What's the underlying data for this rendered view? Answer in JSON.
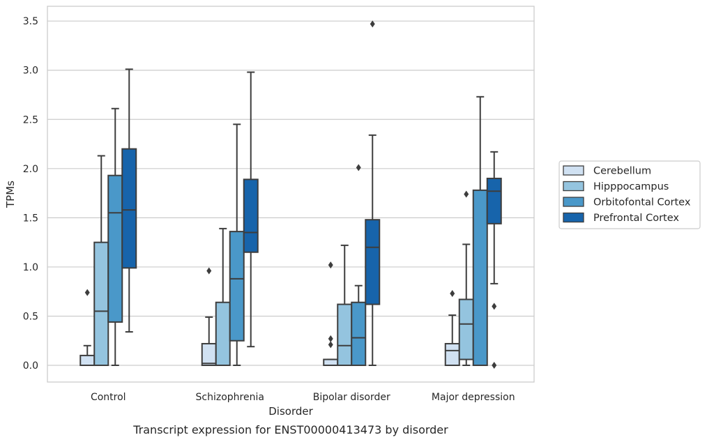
{
  "chart_data": {
    "type": "box",
    "caption": "Transcript expression for ENST00000413473 by disorder",
    "xlabel": "Disorder",
    "ylabel": "TPMs",
    "ylim": [
      -0.17,
      3.65
    ],
    "yticks": [
      0.0,
      0.5,
      1.0,
      1.5,
      2.0,
      2.5,
      3.0,
      3.5
    ],
    "ytick_labels": [
      "0.0",
      "0.5",
      "1.0",
      "1.5",
      "2.0",
      "2.5",
      "3.0",
      "3.5"
    ],
    "categories": [
      "Control",
      "Schizophrenia",
      "Bipolar disorder",
      "Major depression"
    ],
    "grid": "horizontal",
    "legend_position": "right",
    "series": [
      {
        "name": "Cerebellum",
        "color": "#d0e1f2",
        "boxes": [
          {
            "q1": 0.0,
            "median": 0.0,
            "q3": 0.1,
            "whisker_low": 0.0,
            "whisker_high": 0.2,
            "outliers": [
              0.74
            ]
          },
          {
            "q1": 0.0,
            "median": 0.02,
            "q3": 0.22,
            "whisker_low": 0.0,
            "whisker_high": 0.49,
            "outliers": [
              0.96
            ]
          },
          {
            "q1": 0.0,
            "median": 0.0,
            "q3": 0.06,
            "whisker_low": 0.0,
            "whisker_high": 0.06,
            "outliers": [
              0.21,
              0.27,
              1.02
            ]
          },
          {
            "q1": 0.0,
            "median": 0.15,
            "q3": 0.22,
            "whisker_low": 0.0,
            "whisker_high": 0.51,
            "outliers": [
              0.73
            ]
          }
        ]
      },
      {
        "name": "Hipppocampus",
        "color": "#94c4df",
        "boxes": [
          {
            "q1": 0.0,
            "median": 0.55,
            "q3": 1.25,
            "whisker_low": 0.0,
            "whisker_high": 2.13,
            "outliers": []
          },
          {
            "q1": 0.0,
            "median": 0.0,
            "q3": 0.64,
            "whisker_low": 0.0,
            "whisker_high": 1.39,
            "outliers": []
          },
          {
            "q1": 0.0,
            "median": 0.2,
            "q3": 0.62,
            "whisker_low": 0.0,
            "whisker_high": 1.22,
            "outliers": []
          },
          {
            "q1": 0.06,
            "median": 0.42,
            "q3": 0.67,
            "whisker_low": 0.0,
            "whisker_high": 1.23,
            "outliers": [
              1.74
            ]
          }
        ]
      },
      {
        "name": "Orbitofontal Cortex",
        "color": "#4a98c9",
        "boxes": [
          {
            "q1": 0.44,
            "median": 1.55,
            "q3": 1.93,
            "whisker_low": 0.0,
            "whisker_high": 2.61,
            "outliers": []
          },
          {
            "q1": 0.25,
            "median": 0.88,
            "q3": 1.36,
            "whisker_low": 0.0,
            "whisker_high": 2.45,
            "outliers": []
          },
          {
            "q1": 0.0,
            "median": 0.28,
            "q3": 0.64,
            "whisker_low": 0.0,
            "whisker_high": 0.81,
            "outliers": [
              2.01
            ]
          },
          {
            "q1": 0.0,
            "median": 0.0,
            "q3": 1.78,
            "whisker_low": 0.0,
            "whisker_high": 2.73,
            "outliers": []
          }
        ]
      },
      {
        "name": "Prefrontal Cortex",
        "color": "#1764ab",
        "boxes": [
          {
            "q1": 0.99,
            "median": 1.58,
            "q3": 2.2,
            "whisker_low": 0.34,
            "whisker_high": 3.01,
            "outliers": []
          },
          {
            "q1": 1.15,
            "median": 1.35,
            "q3": 1.89,
            "whisker_low": 0.19,
            "whisker_high": 2.98,
            "outliers": []
          },
          {
            "q1": 0.62,
            "median": 1.2,
            "q3": 1.48,
            "whisker_low": 0.0,
            "whisker_high": 2.34,
            "outliers": [
              3.47
            ]
          },
          {
            "q1": 1.44,
            "median": 1.77,
            "q3": 1.9,
            "whisker_low": 0.83,
            "whisker_high": 2.17,
            "outliers": [
              0.0,
              0.6
            ]
          }
        ]
      }
    ]
  }
}
